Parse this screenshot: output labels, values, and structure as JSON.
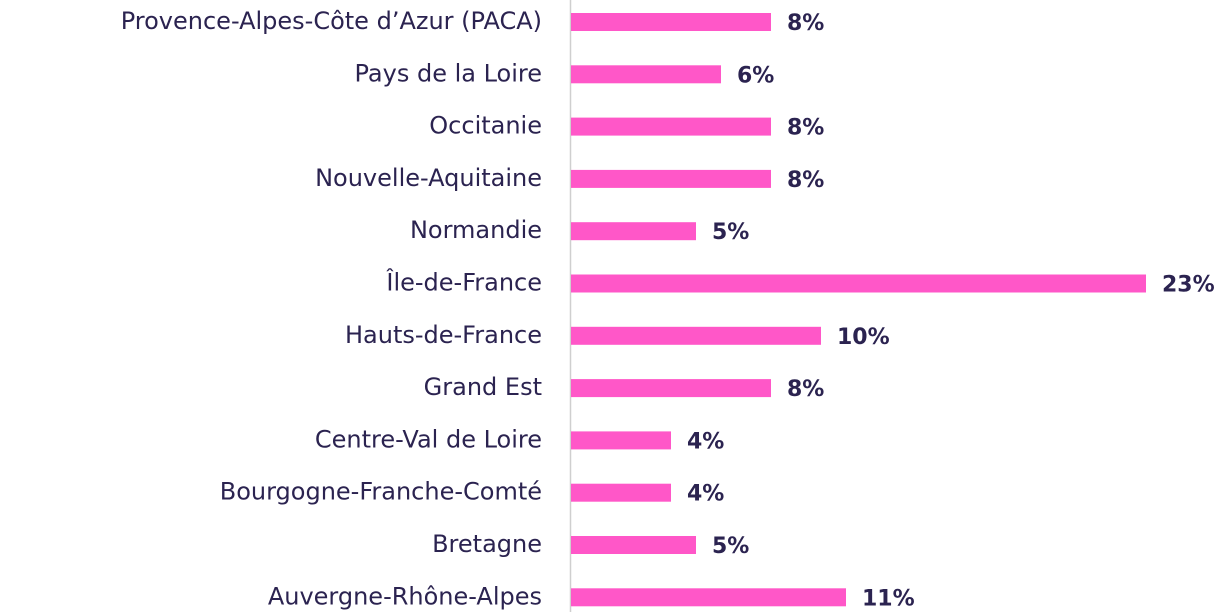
{
  "chart_data": {
    "type": "barh",
    "categories": [
      "Provence-Alpes-Côte d’Azur (PACA)",
      "Pays de la Loire",
      "Occitanie",
      "Nouvelle-Aquitaine",
      "Normandie",
      "Île-de-France",
      "Hauts-de-France",
      "Grand Est",
      "Centre-Val de Loire",
      "Bourgogne-Franche-Comté",
      "Bretagne",
      "Auvergne-Rhône-Alpes"
    ],
    "values": [
      8,
      6,
      8,
      8,
      5,
      23,
      10,
      8,
      4,
      4,
      5,
      11
    ],
    "value_labels": [
      "8%",
      "6%",
      "8%",
      "8%",
      "5%",
      "23%",
      "10%",
      "8%",
      "4%",
      "4%",
      "5%",
      "11%"
    ],
    "color": "#ff57c8",
    "xlim": [
      0,
      23
    ]
  }
}
